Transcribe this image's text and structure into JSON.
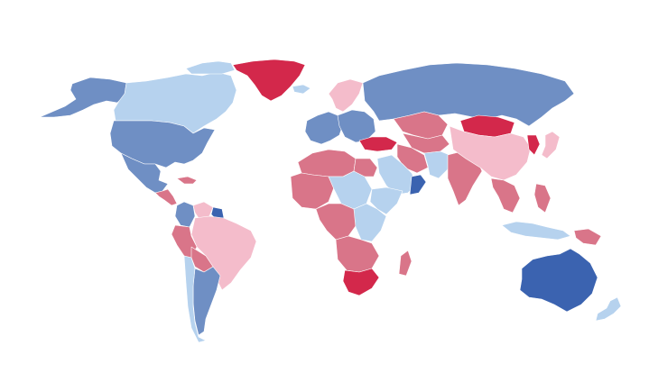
{
  "map": {
    "palette": {
      "dark_blue": "#3b63b0",
      "mid_blue": "#6f8fc4",
      "light_blue": "#b6d2ee",
      "pale_pink": "#f4bccb",
      "mid_pink": "#d97589",
      "dark_red": "#d3284b"
    },
    "regions": [
      {
        "name": "alaska",
        "class": "mid_blue"
      },
      {
        "name": "canada",
        "class": "light_blue"
      },
      {
        "name": "canada-arctic",
        "class": "light_blue"
      },
      {
        "name": "greenland",
        "class": "dark_red"
      },
      {
        "name": "united-states",
        "class": "mid_blue"
      },
      {
        "name": "mexico",
        "class": "mid_blue"
      },
      {
        "name": "central-america",
        "class": "mid_pink"
      },
      {
        "name": "cuba",
        "class": "mid_pink"
      },
      {
        "name": "colombia",
        "class": "mid_blue"
      },
      {
        "name": "venezuela",
        "class": "pale_pink"
      },
      {
        "name": "guyana",
        "class": "dark_blue"
      },
      {
        "name": "brazil",
        "class": "pale_pink"
      },
      {
        "name": "peru",
        "class": "mid_pink"
      },
      {
        "name": "bolivia",
        "class": "mid_pink"
      },
      {
        "name": "argentina",
        "class": "mid_blue"
      },
      {
        "name": "chile",
        "class": "light_blue"
      },
      {
        "name": "iceland",
        "class": "light_blue"
      },
      {
        "name": "scandinavia",
        "class": "pale_pink"
      },
      {
        "name": "western-europe",
        "class": "mid_blue"
      },
      {
        "name": "eastern-europe",
        "class": "mid_blue"
      },
      {
        "name": "russia",
        "class": "mid_blue"
      },
      {
        "name": "turkey",
        "class": "dark_red"
      },
      {
        "name": "north-africa",
        "class": "mid_pink"
      },
      {
        "name": "west-africa",
        "class": "mid_pink"
      },
      {
        "name": "sudan-chad",
        "class": "light_blue"
      },
      {
        "name": "egypt",
        "class": "mid_pink"
      },
      {
        "name": "arabia",
        "class": "light_blue"
      },
      {
        "name": "oman",
        "class": "dark_blue"
      },
      {
        "name": "iran",
        "class": "mid_pink"
      },
      {
        "name": "central-asia",
        "class": "mid_pink"
      },
      {
        "name": "kazakhstan",
        "class": "mid_pink"
      },
      {
        "name": "afghanistan-pakistan",
        "class": "light_blue"
      },
      {
        "name": "india",
        "class": "mid_pink"
      },
      {
        "name": "mongolia",
        "class": "dark_red"
      },
      {
        "name": "china",
        "class": "pale_pink"
      },
      {
        "name": "korea",
        "class": "dark_red"
      },
      {
        "name": "japan",
        "class": "pale_pink"
      },
      {
        "name": "southeast-asia",
        "class": "mid_pink"
      },
      {
        "name": "philippines",
        "class": "mid_pink"
      },
      {
        "name": "indonesia",
        "class": "light_blue"
      },
      {
        "name": "papua-new-guinea",
        "class": "mid_pink"
      },
      {
        "name": "east-africa",
        "class": "light_blue"
      },
      {
        "name": "horn-of-africa",
        "class": "light_blue"
      },
      {
        "name": "central-africa",
        "class": "mid_pink"
      },
      {
        "name": "southern-africa",
        "class": "mid_pink"
      },
      {
        "name": "south-africa",
        "class": "dark_red"
      },
      {
        "name": "madagascar",
        "class": "mid_pink"
      },
      {
        "name": "australia",
        "class": "dark_blue"
      },
      {
        "name": "new-zealand",
        "class": "light_blue"
      }
    ]
  }
}
